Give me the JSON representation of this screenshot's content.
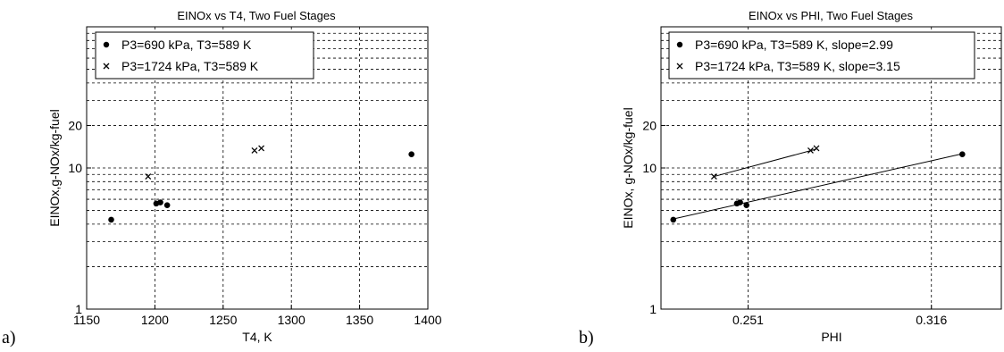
{
  "panel_letters": [
    "a)",
    "b)"
  ],
  "chart_data": [
    {
      "type": "scatter",
      "title": "EINOx vs T4, Two Fuel Stages",
      "xlabel": "T4, K",
      "ylabel": "EINOx,g-NOx/kg-fuel",
      "xscale": "linear",
      "yscale": "log",
      "xlim": [
        1150,
        1400
      ],
      "ylim": [
        1,
        100
      ],
      "xticks": [
        1150,
        1200,
        1250,
        1300,
        1350,
        1400
      ],
      "xtick_labels": [
        "1150",
        "1200",
        "1250",
        "1300",
        "1350",
        "1400"
      ],
      "yticks": [
        1,
        10,
        20
      ],
      "ytick_labels": [
        "1",
        "10",
        "20"
      ],
      "grid": true,
      "legend_position": "top-left",
      "series": [
        {
          "name": "P3=690 kPa, T3=589 K",
          "marker": "dot",
          "x": [
            1168,
            1201,
            1204,
            1209,
            1388
          ],
          "y": [
            4.3,
            5.6,
            5.7,
            5.45,
            12.5
          ]
        },
        {
          "name": "P3=1724 kPa, T3=589 K",
          "marker": "x",
          "x": [
            1195,
            1273,
            1278
          ],
          "y": [
            8.7,
            13.3,
            13.8
          ]
        }
      ]
    },
    {
      "type": "scatter",
      "title": "EINOx vs PHI, Two Fuel Stages",
      "xlabel": "PHI",
      "ylabel": "EINOx, g-NOx/kg-fuel",
      "xscale": "log",
      "yscale": "log",
      "xlim": [
        0.225,
        0.345
      ],
      "ylim": [
        1,
        100
      ],
      "xticks": [
        0.251,
        0.316
      ],
      "xtick_labels": [
        "0.251",
        "0.316"
      ],
      "yticks": [
        1,
        10,
        20
      ],
      "ytick_labels": [
        "1",
        "10",
        "20"
      ],
      "grid": true,
      "legend_position": "top-left",
      "series": [
        {
          "name": "P3=690 kPa, T3=589 K, slope=2.99",
          "marker": "dot",
          "x": [
            0.2285,
            0.2475,
            0.2485,
            0.2505,
            0.3285
          ],
          "y": [
            4.3,
            5.6,
            5.7,
            5.45,
            12.5
          ],
          "fit": {
            "slope": 2.99,
            "x": [
              0.2285,
              0.3285
            ],
            "y": [
              4.35,
              12.6
            ]
          }
        },
        {
          "name": "P3=1724 kPa, T3=589 K, slope=3.15",
          "marker": "x",
          "x": [
            0.2405,
            0.2715,
            0.2735
          ],
          "y": [
            8.7,
            13.3,
            13.8
          ],
          "fit": {
            "slope": 3.15,
            "x": [
              0.2405,
              0.2735
            ],
            "y": [
              8.7,
              13.6
            ]
          }
        }
      ]
    }
  ]
}
